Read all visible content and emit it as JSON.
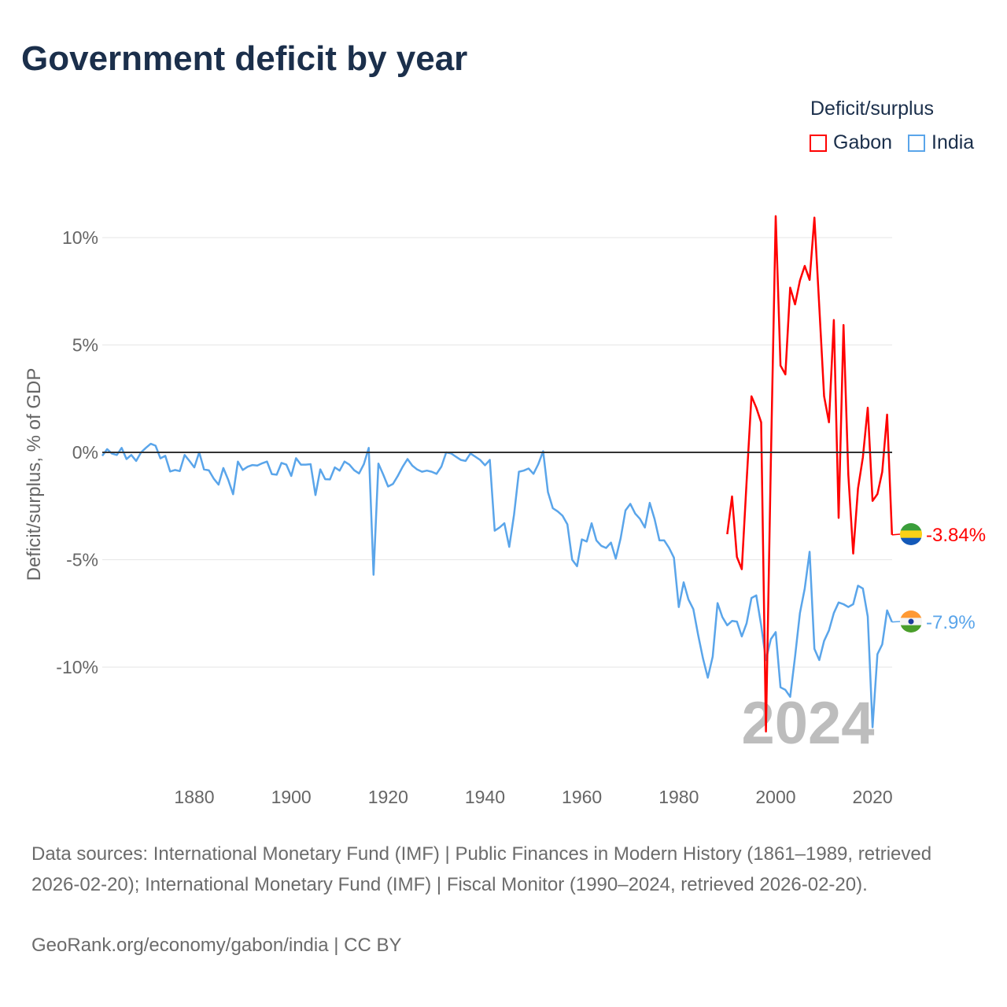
{
  "title": "Government deficit by year",
  "legend": {
    "title": "Deficit/surplus",
    "items": [
      {
        "name": "Gabon",
        "color": "#ff0000"
      },
      {
        "name": "India",
        "color": "#5aa5ea"
      }
    ]
  },
  "chart_data": {
    "type": "line",
    "title": "Government deficit by year",
    "ylabel": "Deficit/surplus, % of GDP",
    "xlabel": "",
    "ylim": [
      -14,
      12
    ],
    "xlim": [
      1861,
      2024
    ],
    "yticks": [
      {
        "v": 10,
        "label": "10%"
      },
      {
        "v": 5,
        "label": "5%"
      },
      {
        "v": 0,
        "label": "0%"
      },
      {
        "v": -5,
        "label": "-5%"
      },
      {
        "v": -10,
        "label": "-10%"
      }
    ],
    "xticks": [
      1880,
      1900,
      1920,
      1940,
      1960,
      1980,
      2000,
      2020
    ],
    "grid": true,
    "legend_position": "top-right",
    "year_watermark": "2024",
    "series": [
      {
        "name": "Gabon",
        "color": "#ff0000",
        "end_label": "-3.84%",
        "flag": "gabon-flag",
        "start": 1990,
        "values": [
          -3.81,
          -2.05,
          -4.87,
          -5.44,
          -1.37,
          2.61,
          2.08,
          1.4,
          -13.0,
          -0.5,
          11.0,
          4.04,
          3.63,
          7.67,
          6.89,
          8.0,
          8.68,
          8.03,
          10.93,
          6.78,
          2.62,
          1.4,
          6.16,
          -3.05,
          5.93,
          -1.04,
          -4.71,
          -1.69,
          -0.23,
          2.08,
          -2.26,
          -1.94,
          -0.91,
          1.76,
          -3.84
        ]
      },
      {
        "name": "India",
        "color": "#5aa5ea",
        "end_label": "-7.9%",
        "flag": "india-flag",
        "start": 1861,
        "values": [
          -0.16,
          0.15,
          -0.06,
          -0.12,
          0.21,
          -0.31,
          -0.12,
          -0.4,
          0,
          0.21,
          0.4,
          0.31,
          -0.28,
          -0.16,
          -0.89,
          -0.82,
          -0.87,
          -0.12,
          -0.4,
          -0.7,
          0,
          -0.79,
          -0.84,
          -1.22,
          -1.5,
          -0.73,
          -1.28,
          -1.95,
          -0.43,
          -0.82,
          -0.67,
          -0.59,
          -0.61,
          -0.51,
          -0.43,
          -1.01,
          -1.04,
          -0.49,
          -0.57,
          -1.1,
          -0.27,
          -0.57,
          -0.57,
          -0.55,
          -1.99,
          -0.79,
          -1.25,
          -1.26,
          -0.7,
          -0.85,
          -0.43,
          -0.57,
          -0.83,
          -0.98,
          -0.55,
          0.21,
          -5.7,
          -0.52,
          -1.04,
          -1.59,
          -1.47,
          -1.1,
          -0.67,
          -0.31,
          -0.62,
          -0.8,
          -0.9,
          -0.85,
          -0.9,
          -1.0,
          -0.66,
          0,
          -0.05,
          -0.2,
          -0.35,
          -0.4,
          -0.05,
          -0.2,
          -0.35,
          -0.6,
          -0.35,
          -3.65,
          -3.5,
          -3.3,
          -4.4,
          -2.9,
          -0.9,
          -0.85,
          -0.75,
          -1.0,
          -0.55,
          0.05,
          -1.85,
          -2.6,
          -2.75,
          -2.95,
          -3.35,
          -5.0,
          -5.3,
          -4.05,
          -4.15,
          -3.3,
          -4.1,
          -4.35,
          -4.45,
          -4.2,
          -4.95,
          -4.0,
          -2.7,
          -2.4,
          -2.85,
          -3.1,
          -3.5,
          -2.35,
          -3.1,
          -4.1,
          -4.1,
          -4.45,
          -4.9,
          -7.2,
          -6.05,
          -6.85,
          -7.3,
          -8.5,
          -9.6,
          -10.49,
          -9.51,
          -7.02,
          -7.67,
          -8.05,
          -7.85,
          -7.88,
          -8.57,
          -7.96,
          -6.78,
          -6.66,
          -8.05,
          -9.67,
          -8.7,
          -8.37,
          -10.94,
          -11.06,
          -11.38,
          -9.51,
          -7.48,
          -6.34,
          -4.63,
          -9.15,
          -9.67,
          -8.78,
          -8.29,
          -7.48,
          -6.99,
          -7.07,
          -7.2,
          -7.07,
          -6.21,
          -6.34,
          -7.64,
          -12.8,
          -9.4,
          -8.94,
          -7.36,
          -7.9
        ]
      }
    ]
  },
  "footer": {
    "sources": "Data sources: International Monetary Fund (IMF) | Public Finances in Modern History (1861–1989, retrieved 2026-02-20); International Monetary Fund (IMF) | Fiscal Monitor (1990–2024, retrieved 2026-02-20).",
    "credit": "GeoRank.org/economy/gabon/india | CC BY"
  }
}
